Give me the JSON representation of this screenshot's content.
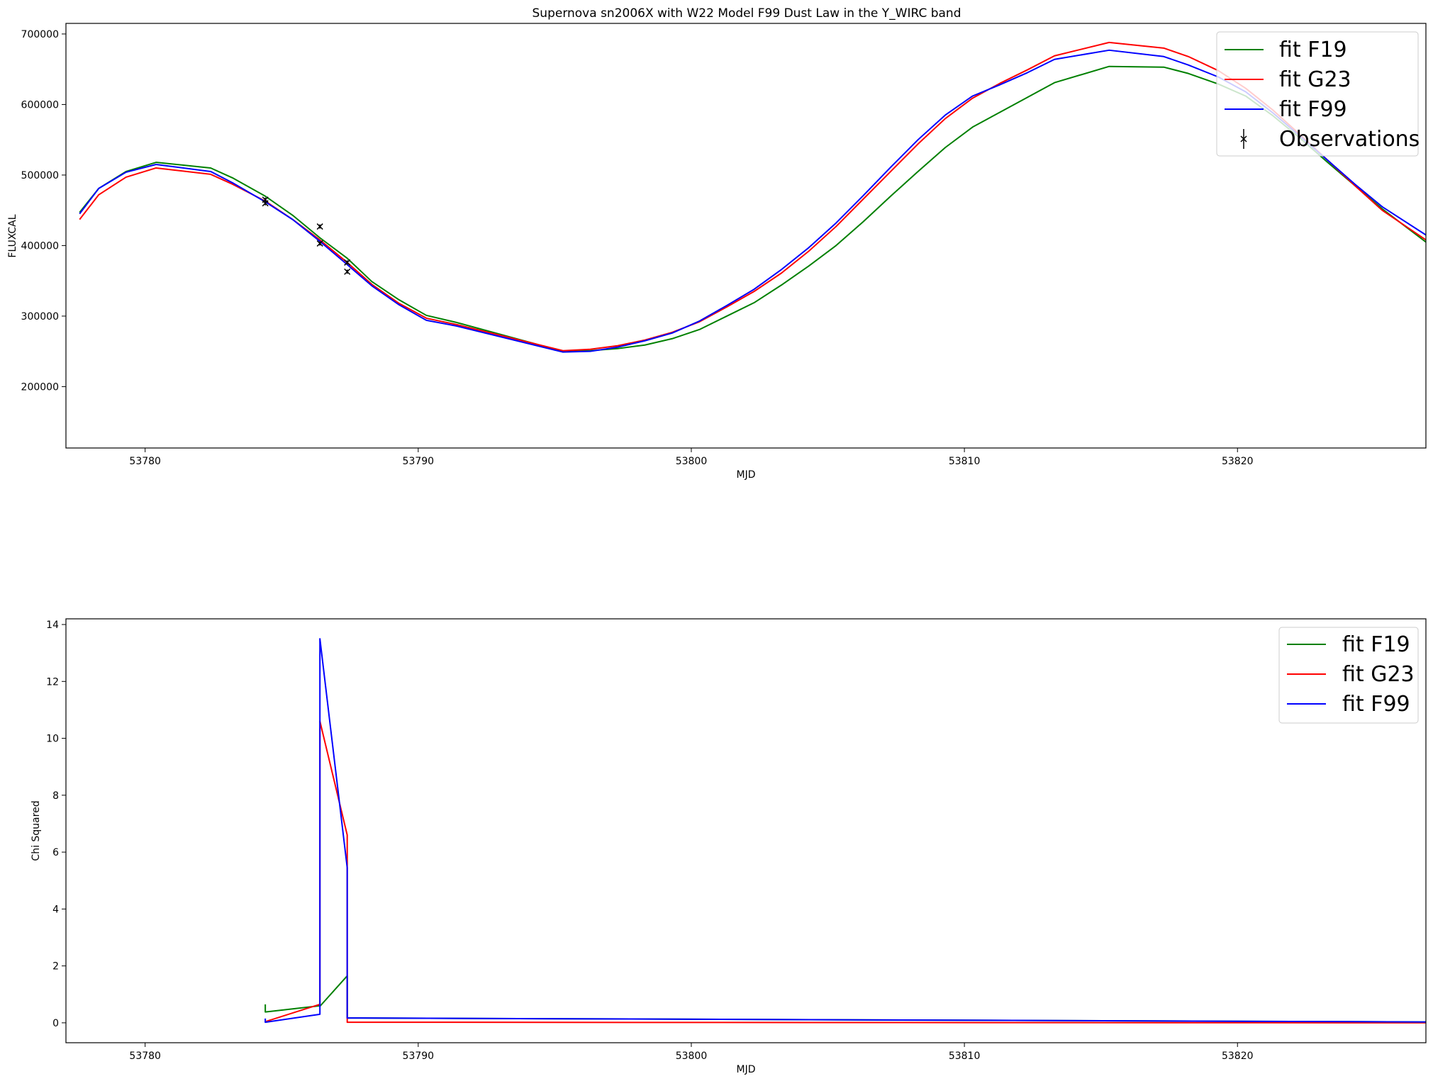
{
  "chart_data": [
    {
      "type": "line",
      "title": "Supernova sn2006X with W22 Model F99 Dust Law in the Y_WIRC band",
      "xlabel": "MJD",
      "ylabel": "FLUXCAL",
      "xlim": [
        53777.1,
        53826.9
      ],
      "ylim": [
        113000,
        715000
      ],
      "xticks": [
        53780,
        53790,
        53800,
        53810,
        53820
      ],
      "yticks": [
        200000,
        300000,
        400000,
        500000,
        600000,
        700000
      ],
      "legend_position": "top-right",
      "series": [
        {
          "name": "fit F19",
          "color": "#008000",
          "x": [
            53777.6,
            53778.3,
            53779.3,
            53780.4,
            53782.4,
            53783.2,
            53784.4,
            53785.4,
            53786.4,
            53787.4,
            53788.3,
            53789.3,
            53790.3,
            53791.4,
            53795.3,
            53796.3,
            53797.3,
            53798.3,
            53799.3,
            53800.3,
            53801.3,
            53802.3,
            53803.3,
            53804.3,
            53805.3,
            53806.3,
            53807.3,
            53808.3,
            53809.3,
            53810.3,
            53811.3,
            53812.3,
            53813.3,
            53815.3,
            53817.3,
            53818.2,
            53819.3,
            53820.3,
            53821.3,
            53822.3,
            53823.3,
            53824.3,
            53825.3,
            53826.9
          ],
          "y": [
            447000,
            481000,
            505000,
            518000,
            510000,
            496000,
            470000,
            443000,
            411000,
            382000,
            349000,
            323000,
            301000,
            291000,
            250000,
            251000,
            254000,
            259000,
            268000,
            281000,
            300000,
            319000,
            344000,
            371000,
            400000,
            434000,
            470000,
            505000,
            539000,
            568000,
            589000,
            610000,
            631000,
            654000,
            653000,
            644000,
            629000,
            612000,
            584000,
            552000,
            518000,
            485000,
            452000,
            405000
          ]
        },
        {
          "name": "fit G23",
          "color": "#ff0000",
          "x": [
            53777.6,
            53778.3,
            53779.3,
            53780.4,
            53782.4,
            53783.2,
            53784.4,
            53785.4,
            53786.4,
            53787.4,
            53788.3,
            53789.3,
            53790.3,
            53791.4,
            53795.3,
            53796.3,
            53797.3,
            53798.3,
            53799.3,
            53800.3,
            53801.3,
            53802.3,
            53803.3,
            53804.3,
            53805.3,
            53806.3,
            53807.3,
            53808.3,
            53809.3,
            53810.3,
            53811.3,
            53812.3,
            53813.3,
            53815.3,
            53817.3,
            53818.2,
            53819.3,
            53820.3,
            53821.3,
            53822.3,
            53823.3,
            53824.3,
            53825.3,
            53826.9
          ],
          "y": [
            437000,
            472000,
            497000,
            510000,
            501000,
            487000,
            463000,
            437000,
            408000,
            376000,
            345000,
            318000,
            297000,
            288000,
            251000,
            253000,
            258000,
            266000,
            277000,
            292000,
            313000,
            335000,
            361000,
            392000,
            427000,
            466000,
            505000,
            544000,
            580000,
            609000,
            630000,
            649000,
            669000,
            688000,
            680000,
            668000,
            648000,
            623000,
            592000,
            557000,
            521000,
            485000,
            450000,
            408000
          ]
        },
        {
          "name": "fit F99",
          "color": "#0000ff",
          "x": [
            53777.6,
            53778.3,
            53779.3,
            53780.4,
            53782.4,
            53783.2,
            53784.4,
            53785.4,
            53786.4,
            53787.4,
            53788.3,
            53789.3,
            53790.3,
            53791.4,
            53795.3,
            53796.3,
            53797.3,
            53798.3,
            53799.3,
            53800.3,
            53801.3,
            53802.3,
            53803.3,
            53804.3,
            53805.3,
            53806.3,
            53807.3,
            53808.3,
            53809.3,
            53810.3,
            53811.3,
            53812.3,
            53813.3,
            53815.3,
            53817.3,
            53818.2,
            53819.3,
            53820.3,
            53821.3,
            53822.3,
            53823.3,
            53824.3,
            53825.3,
            53826.9
          ],
          "y": [
            445000,
            481000,
            504000,
            515000,
            505000,
            489000,
            462000,
            437000,
            406000,
            373000,
            343000,
            316000,
            294000,
            286000,
            249000,
            250000,
            256000,
            265000,
            276000,
            293000,
            315000,
            338000,
            366000,
            397000,
            432000,
            471000,
            511000,
            550000,
            585000,
            612000,
            628000,
            645000,
            664000,
            677000,
            668000,
            656000,
            639000,
            618000,
            588000,
            555000,
            521000,
            487000,
            455000,
            415000
          ]
        }
      ],
      "observations": {
        "name": "Observations",
        "marker": "x",
        "color": "#000000",
        "x": [
          53784.4,
          53784.4,
          53786.4,
          53786.4,
          53787.4,
          53787.4
        ],
        "y": [
          465000,
          460000,
          427000,
          403000,
          376000,
          363000
        ],
        "yerr": [
          3000,
          3000,
          3000,
          3000,
          3000,
          3000
        ]
      }
    },
    {
      "type": "line",
      "title": "",
      "xlabel": "MJD",
      "ylabel": "Chi Squared",
      "xlim": [
        53777.1,
        53826.9
      ],
      "ylim": [
        -0.7,
        14.2
      ],
      "xticks": [
        53780,
        53790,
        53800,
        53810,
        53820
      ],
      "yticks": [
        0,
        2,
        4,
        6,
        8,
        10,
        12,
        14
      ],
      "legend_position": "top-right",
      "series": [
        {
          "name": "fit F19",
          "color": "#008000",
          "x": [
            53784.4,
            53784.4,
            53786.4,
            53786.4,
            53787.4,
            53787.4,
            53826.9
          ],
          "y": [
            0.65,
            0.38,
            0.6,
            0.58,
            1.65,
            0.17,
            0.03
          ]
        },
        {
          "name": "fit G23",
          "color": "#ff0000",
          "x": [
            53784.4,
            53784.4,
            53786.4,
            53786.4,
            53787.4,
            53787.4,
            53826.9
          ],
          "y": [
            0.02,
            0.04,
            0.65,
            10.6,
            6.6,
            0.02,
            0.0
          ]
        },
        {
          "name": "fit F99",
          "color": "#0000ff",
          "x": [
            53784.4,
            53784.4,
            53786.4,
            53786.4,
            53787.4,
            53787.4,
            53826.9
          ],
          "y": [
            0.15,
            0.02,
            0.3,
            13.5,
            5.45,
            0.17,
            0.03
          ]
        }
      ]
    }
  ]
}
